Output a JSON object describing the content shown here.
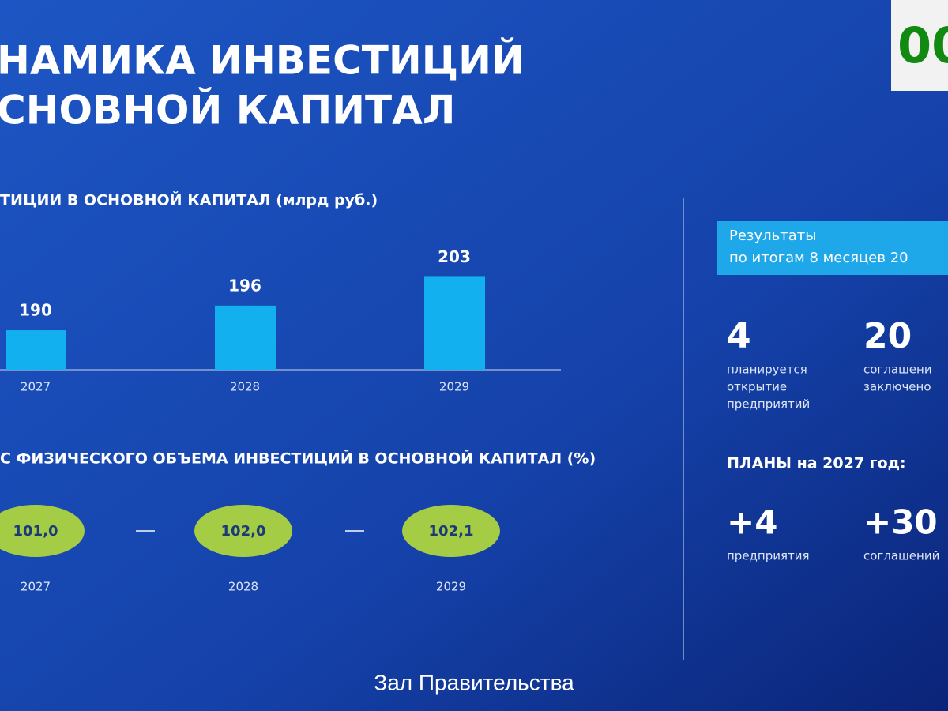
{
  "header": {
    "title_lines": [
      "НАМИКА ИНВЕСТИЦИЙ",
      "СНОВНОЙ КАПИТАЛ"
    ],
    "badge": "00"
  },
  "chart_data": {
    "type": "bar",
    "title": "ТИЦИИ В ОСНОВНОЙ КАПИТАЛ (млрд руб.)",
    "categories": [
      "2027",
      "2028",
      "2029"
    ],
    "values": [
      190,
      196,
      203
    ],
    "color": "#13b0ef",
    "ylim": [
      180.4,
      205
    ]
  },
  "index_section": {
    "title": "С ФИЗИЧЕСКОГО ОБЪЕМА ИНВЕСТИЦИЙ В ОСНОВНОЙ КАПИТАЛ (%)",
    "items": [
      {
        "value": "101,0",
        "year": "2027"
      },
      {
        "value": "102,0",
        "year": "2028"
      },
      {
        "value": "102,1",
        "year": "2029"
      }
    ]
  },
  "panel": {
    "box_lines": [
      "Результаты",
      "по итогам 8 месяцев 20"
    ],
    "results": [
      {
        "number": "4",
        "lines": [
          "планируется",
          "открытие",
          "предприятий"
        ]
      },
      {
        "number": "20",
        "lines": [
          "соглашени",
          "заключено"
        ]
      }
    ],
    "plans_title": "ПЛАНЫ на 2027 год:",
    "plans": [
      {
        "number": "+4",
        "lines": [
          "предприятия"
        ]
      },
      {
        "number": "+30",
        "lines": [
          "соглашений"
        ]
      }
    ]
  },
  "caption": "Зал Правительства"
}
